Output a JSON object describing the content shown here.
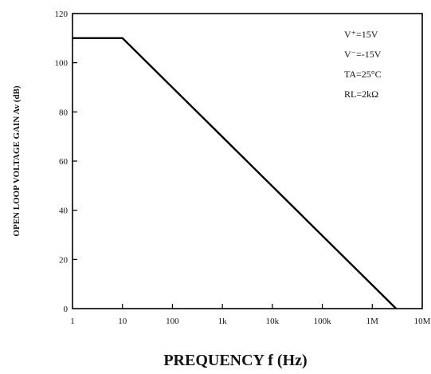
{
  "chart_data": {
    "type": "line",
    "title": "",
    "xlabel": "PREQUENCY f (Hz)",
    "ylabel": "OPEN LOOP VOLTAGE GAIN Av (dB)",
    "x_scale": "log",
    "xlim": [
      1,
      10000000
    ],
    "ylim": [
      0,
      120
    ],
    "x_ticks": [
      1,
      10,
      100,
      1000,
      10000,
      100000,
      1000000,
      10000000
    ],
    "x_tick_labels": [
      "1",
      "10",
      "100",
      "1k",
      "10k",
      "100k",
      "1M",
      "10M"
    ],
    "y_ticks": [
      0,
      20,
      40,
      60,
      80,
      100,
      120
    ],
    "y_tick_labels": [
      "0",
      "20",
      "40",
      "60",
      "80",
      "100",
      "120"
    ],
    "grid": false,
    "line_color": "#000000",
    "series": [
      {
        "x": [
          1,
          10,
          3000000
        ],
        "y": [
          110,
          110,
          0
        ]
      }
    ],
    "annotations": [
      "V⁺=15V",
      "V⁻=-15V",
      "TA=25°C",
      "RL=2kΩ"
    ]
  }
}
